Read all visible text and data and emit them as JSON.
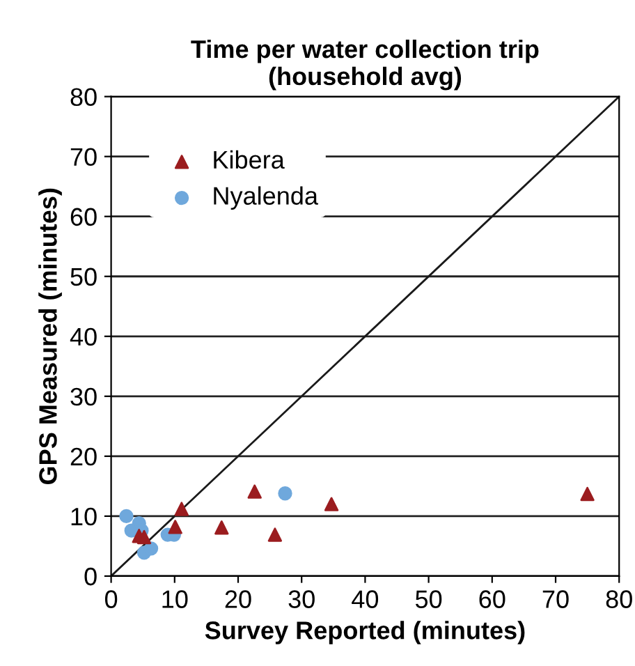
{
  "chart_data": {
    "type": "scatter",
    "title": "Time per water collection trip\n(household avg)",
    "xlabel": "Survey Reported (minutes)",
    "ylabel": "GPS Measured (minutes)",
    "xlim": [
      0,
      80
    ],
    "ylim": [
      0,
      80
    ],
    "xticks": [
      0,
      10,
      20,
      30,
      40,
      50,
      60,
      70,
      80
    ],
    "yticks": [
      0,
      10,
      20,
      30,
      40,
      50,
      60,
      70,
      80
    ],
    "grid": "y",
    "legend": "top left",
    "series": [
      {
        "name": "Kibera",
        "color": "#9b1c1f",
        "marker": "triangle",
        "x": [
          4.4,
          5.2,
          10.1,
          11.1,
          17.4,
          22.6,
          25.8,
          34.7,
          75
        ],
        "values": [
          6.7,
          6.5,
          8.2,
          11.2,
          8.1,
          14.1,
          6.9,
          12.0,
          13.7
        ]
      },
      {
        "name": "Nyalenda",
        "color": "#6fa8dc",
        "marker": "circle",
        "x": [
          2.4,
          3.2,
          4.4,
          4.8,
          5.2,
          6.3,
          8.9,
          9.9,
          27.4
        ],
        "values": [
          10.0,
          7.6,
          8.8,
          7.6,
          3.9,
          4.6,
          6.9,
          6.9,
          13.8
        ]
      },
      {
        "type": "line",
        "color": "#1a1a1a",
        "marker": "none",
        "x": [
          0,
          80
        ],
        "values": [
          0,
          80
        ]
      }
    ]
  }
}
